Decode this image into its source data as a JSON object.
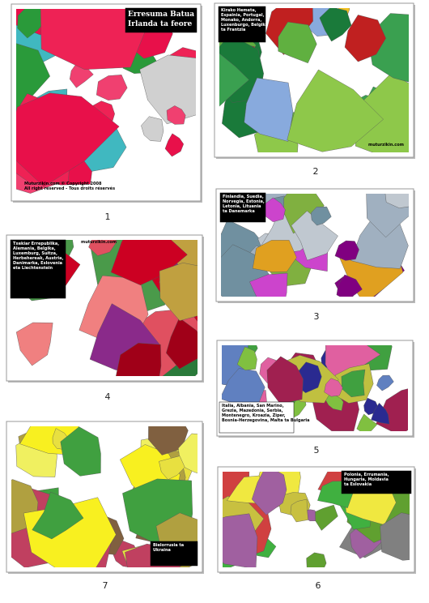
{
  "thumbnails": [
    {
      "number": "1",
      "caption": [
        "Erresuma Batua",
        "Irlanda ta feore"
      ],
      "footer": [
        "Muturzikin.com © Copyright 2008",
        "All right reserved - Tous droits réservés"
      ]
    },
    {
      "number": "2",
      "caption": [
        "Kirako Hemeta,",
        "Espainia, Portugal,",
        "Monako, Andorra,",
        "Luxenburgo, Belgika",
        "ta Frantzia"
      ],
      "footer": [
        "muturzikin.com"
      ]
    },
    {
      "number": "3",
      "caption": [
        "Finlandia, Suedia,",
        "Norvegia, Estonia,",
        "Letonia, Lituania",
        "ta Danemarka"
      ],
      "footer": []
    },
    {
      "number": "4",
      "caption": [
        "Txekiar Errepublika,",
        "Alemania, Belgika,",
        "Luxemburg, Suitza,",
        "Herbehereak, Austria,",
        "Danimarka, Eslovenia",
        "eta Liechtenstein"
      ],
      "footer": [
        "muturzikin.com"
      ]
    },
    {
      "number": "5",
      "caption": [
        "Italia, Albania, San Marino,",
        "Grezia, Mazedonia, Serbia,",
        "Montenegro, Kroazia, Ziper,",
        "Bosnia-Herzegovina, Malta ta Bulgaria"
      ],
      "footer": []
    },
    {
      "number": "7",
      "caption": [
        "Bielorrusia ta",
        "Ukraina"
      ],
      "footer": []
    },
    {
      "number": "6",
      "caption": [
        "Polonia, Errumania,",
        "Hungaria, Moldavia",
        "ta Eslovakia"
      ],
      "footer": []
    }
  ]
}
